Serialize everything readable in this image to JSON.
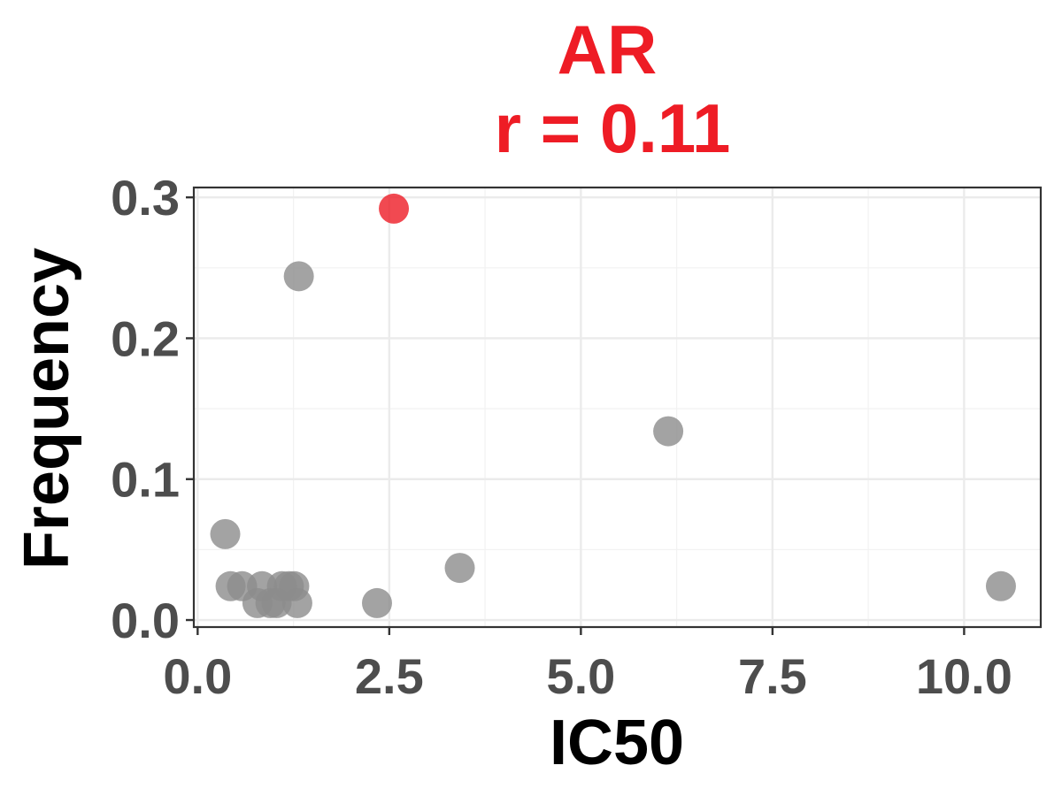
{
  "chart_data": {
    "type": "scatter",
    "title": "AR",
    "subtitle": "r = 0.11",
    "xlabel": "IC50",
    "ylabel": "Frequency",
    "xlim": [
      -0.05,
      11.0
    ],
    "ylim": [
      -0.005,
      0.307
    ],
    "x_ticks": [
      0.0,
      2.5,
      5.0,
      7.5,
      10.0
    ],
    "x_tick_labels": [
      "0.0",
      "2.5",
      "5.0",
      "7.5",
      "10.0"
    ],
    "y_ticks": [
      0.0,
      0.1,
      0.2,
      0.3
    ],
    "y_tick_labels": [
      "0.0",
      "0.1",
      "0.2",
      "0.3"
    ],
    "grid": true,
    "legend": "none",
    "colors": {
      "default_point": "#8C8C8C",
      "highlight_point": "#EE1C25",
      "title": "#EE1C25"
    },
    "points": [
      {
        "x": 2.56,
        "y": 0.292,
        "highlight": true
      },
      {
        "x": 1.32,
        "y": 0.244,
        "highlight": false
      },
      {
        "x": 6.14,
        "y": 0.134,
        "highlight": false
      },
      {
        "x": 0.36,
        "y": 0.061,
        "highlight": false
      },
      {
        "x": 3.42,
        "y": 0.037,
        "highlight": false
      },
      {
        "x": 0.43,
        "y": 0.024,
        "highlight": false
      },
      {
        "x": 0.58,
        "y": 0.024,
        "highlight": false
      },
      {
        "x": 0.84,
        "y": 0.024,
        "highlight": false
      },
      {
        "x": 1.1,
        "y": 0.024,
        "highlight": false
      },
      {
        "x": 1.19,
        "y": 0.024,
        "highlight": false
      },
      {
        "x": 1.26,
        "y": 0.024,
        "highlight": false
      },
      {
        "x": 0.78,
        "y": 0.012,
        "highlight": false
      },
      {
        "x": 0.95,
        "y": 0.012,
        "highlight": false
      },
      {
        "x": 1.03,
        "y": 0.012,
        "highlight": false
      },
      {
        "x": 1.3,
        "y": 0.012,
        "highlight": false
      },
      {
        "x": 2.34,
        "y": 0.012,
        "highlight": false
      },
      {
        "x": 10.48,
        "y": 0.024,
        "highlight": false
      }
    ]
  }
}
